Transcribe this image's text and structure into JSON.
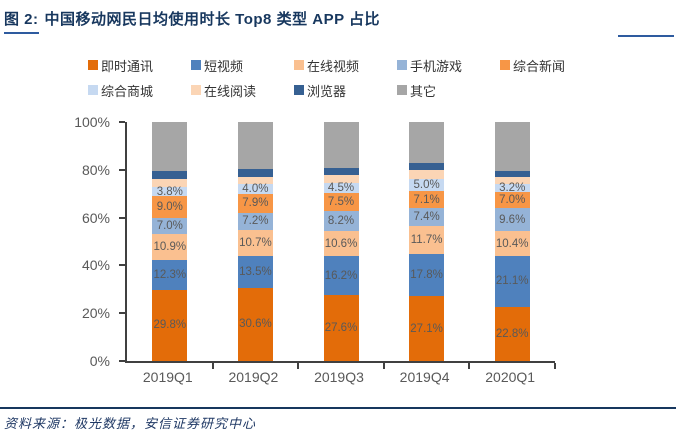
{
  "header": {
    "title_prefix": "图 2:",
    "title_text": "中国移动网民日均使用时长 Top8 类型 APP 占比"
  },
  "footer": {
    "source_text": "资料来源：极光数据，安信证券研究中心"
  },
  "colors": {
    "title_navy": "#17375E",
    "accent_blue_line": "#2E5B9F",
    "axis_line": "#404040",
    "axis_text_gray": "#595959",
    "data_label_gray": "#595959"
  },
  "chart_data": {
    "type": "bar",
    "stacked": true,
    "title": "中国移动网民日均使用时长 Top8 类型 APP 占比",
    "categories": [
      "2019Q1",
      "2019Q2",
      "2019Q3",
      "2019Q4",
      "2020Q1"
    ],
    "series": [
      {
        "name": "即时通讯",
        "color": "#E36C09",
        "labeled": true,
        "values": [
          29.8,
          30.6,
          27.6,
          27.1,
          22.8
        ]
      },
      {
        "name": "短视频",
        "color": "#4F81BD",
        "labeled": true,
        "values": [
          12.3,
          13.5,
          16.2,
          17.8,
          21.1
        ]
      },
      {
        "name": "在线视频",
        "color": "#FAC090",
        "labeled": true,
        "values": [
          10.9,
          10.7,
          10.6,
          11.7,
          10.4
        ]
      },
      {
        "name": "手机游戏",
        "color": "#95B3D7",
        "labeled": true,
        "values": [
          7.0,
          7.2,
          8.2,
          7.4,
          9.6
        ]
      },
      {
        "name": "综合新闻",
        "color": "#F79646",
        "labeled": true,
        "values": [
          9.0,
          7.9,
          7.5,
          7.1,
          7.0
        ]
      },
      {
        "name": "综合商城",
        "color": "#C6D9F1",
        "labeled": true,
        "values": [
          3.8,
          4.0,
          4.5,
          5.0,
          3.2
        ]
      },
      {
        "name": "在线阅读",
        "color": "#FBD5B5",
        "labeled": false,
        "values": [
          3.4,
          3.2,
          3.3,
          3.9,
          2.7
        ]
      },
      {
        "name": "浏览器",
        "color": "#366092",
        "labeled": false,
        "values": [
          3.2,
          3.2,
          3.0,
          3.0,
          2.6
        ]
      },
      {
        "name": "其它",
        "color": "#A6A6A6",
        "labeled": false,
        "values": [
          20.6,
          19.7,
          19.1,
          17.0,
          20.6
        ]
      }
    ],
    "ylim": [
      0,
      100
    ],
    "y_ticks": [
      "0%",
      "20%",
      "40%",
      "60%",
      "80%",
      "100%"
    ],
    "grid": false,
    "legend_position": "top"
  }
}
